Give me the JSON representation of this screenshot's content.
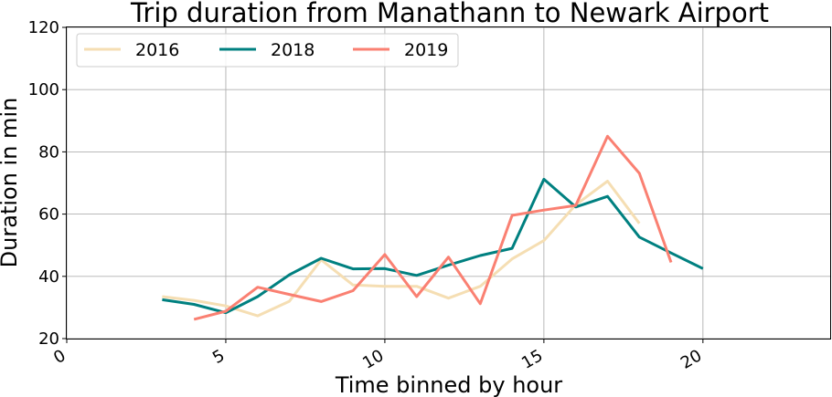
{
  "chart_data": {
    "type": "line",
    "title": "Trip duration from Manathann to Newark Airport",
    "xlabel": "Time binned by hour",
    "ylabel": "Duration in min",
    "xlim": [
      0,
      24
    ],
    "ylim": [
      20,
      120
    ],
    "xticks": [
      0,
      5,
      10,
      15,
      20
    ],
    "yticks": [
      20,
      40,
      60,
      80,
      100,
      120
    ],
    "grid": true,
    "legend_position": "top-left",
    "series": [
      {
        "name": "2016",
        "color": "#f5deb3",
        "x": [
          3,
          4,
          5,
          6,
          7,
          8,
          9,
          10,
          11,
          12,
          13,
          14,
          15,
          16,
          17,
          18
        ],
        "y": [
          33.5,
          32.3,
          30.5,
          27.3,
          32.0,
          45.3,
          37.2,
          36.8,
          36.8,
          33.0,
          36.8,
          45.6,
          51.5,
          63.0,
          70.6,
          57.0
        ]
      },
      {
        "name": "2018",
        "color": "#008080",
        "x": [
          3,
          4,
          5,
          6,
          7,
          8,
          9,
          10,
          11,
          12,
          13,
          14,
          15,
          16,
          17,
          18,
          19,
          20
        ],
        "y": [
          32.5,
          31.0,
          28.3,
          33.5,
          40.5,
          45.8,
          42.4,
          42.5,
          40.3,
          43.6,
          46.7,
          49.0,
          71.2,
          62.3,
          65.7,
          52.6,
          47.5,
          42.5
        ]
      },
      {
        "name": "2019",
        "color": "#fa8072",
        "x": [
          4,
          5,
          6,
          7,
          8,
          9,
          10,
          11,
          12,
          13,
          14,
          15,
          16,
          17,
          18,
          19
        ],
        "y": [
          26.2,
          28.8,
          36.5,
          34.2,
          31.9,
          35.4,
          47.0,
          33.5,
          46.2,
          31.2,
          59.6,
          61.3,
          62.8,
          85.0,
          73.1,
          44.5
        ]
      }
    ]
  }
}
